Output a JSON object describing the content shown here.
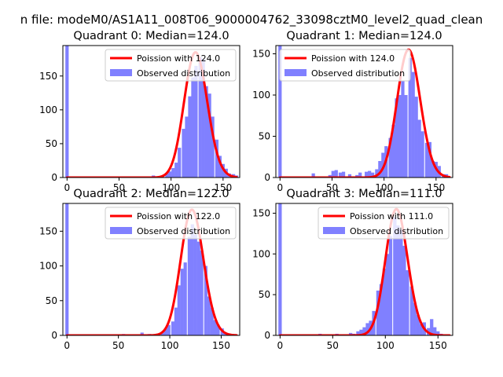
{
  "figure": {
    "suptitle": "n file: modeM0/AS1A11_008T06_9000004762_33098cztM0_level2_quad_clean"
  },
  "colors": {
    "poisson_line": "#ff0000",
    "histogram_fill": "#8080ff",
    "axes": "#000000",
    "background": "#ffffff"
  },
  "chart_data": [
    {
      "type": "bar",
      "title": "Quadrant 0: Median=124.0",
      "legend": {
        "placement": "top-right",
        "entries": [
          "Poission with 124.0",
          "Observed distribution"
        ]
      },
      "xlim": [
        -4,
        166
      ],
      "ylim": [
        0,
        195
      ],
      "xticks": [
        0,
        50,
        100,
        150
      ],
      "yticks": [
        0,
        50,
        100,
        150
      ],
      "grid": false,
      "bin_width": 3.2,
      "poisson_mean": 124,
      "poisson_peak": 185,
      "histogram": {
        "x": [
          0,
          32,
          64,
          80,
          83,
          86,
          89,
          92,
          96,
          99,
          102,
          105,
          108,
          112,
          115,
          118,
          121,
          124,
          128,
          131,
          134,
          137,
          140,
          144,
          147,
          150,
          153,
          156,
          160,
          163
        ],
        "values": [
          195,
          1,
          1,
          1,
          3,
          1,
          2,
          3,
          6,
          9,
          14,
          22,
          44,
          72,
          90,
          120,
          148,
          165,
          178,
          175,
          135,
          124,
          90,
          56,
          32,
          20,
          13,
          6,
          5,
          3
        ]
      }
    },
    {
      "type": "bar",
      "title": "Quadrant 1: Median=124.0",
      "legend": {
        "placement": "top-left",
        "entries": [
          "Poission with 124.0",
          "Observed distribution"
        ]
      },
      "xlim": [
        -4,
        166
      ],
      "ylim": [
        0,
        160
      ],
      "xticks": [
        0,
        50,
        100,
        150
      ],
      "yticks": [
        0,
        50,
        100,
        150
      ],
      "grid": false,
      "bin_width": 3.2,
      "poisson_mean": 124,
      "poisson_peak": 155,
      "histogram": {
        "x": [
          0,
          13,
          32,
          48,
          51,
          54,
          58,
          61,
          67,
          74,
          77,
          83,
          86,
          89,
          93,
          96,
          99,
          102,
          106,
          109,
          112,
          115,
          118,
          121,
          125,
          128,
          131,
          134,
          137,
          141,
          144,
          147,
          150,
          153,
          157,
          160
        ],
        "values": [
          160,
          1,
          5,
          3,
          8,
          9,
          6,
          7,
          4,
          3,
          6,
          7,
          8,
          6,
          10,
          20,
          30,
          38,
          48,
          64,
          96,
          100,
          117,
          100,
          145,
          128,
          98,
          70,
          56,
          42,
          43,
          20,
          19,
          14,
          4,
          4
        ]
      }
    },
    {
      "type": "bar",
      "title": "Quadrant 2: Median=122.0",
      "legend": {
        "placement": "top-right",
        "entries": [
          "Poission with 122.0",
          "Observed distribution"
        ]
      },
      "xlim": [
        -4,
        168
      ],
      "ylim": [
        0,
        190
      ],
      "xticks": [
        0,
        50,
        100,
        150
      ],
      "yticks": [
        0,
        50,
        100,
        150
      ],
      "grid": false,
      "bin_width": 3.2,
      "poisson_mean": 122,
      "poisson_peak": 181,
      "histogram": {
        "x": [
          0,
          32,
          55,
          61,
          64,
          73,
          80,
          86,
          93,
          96,
          99,
          103,
          106,
          109,
          112,
          115,
          119,
          122,
          125,
          128,
          131,
          135,
          138,
          141,
          144,
          147,
          151,
          154,
          157,
          160
        ],
        "values": [
          190,
          1,
          2,
          1,
          1,
          4,
          2,
          1,
          4,
          10,
          15,
          20,
          40,
          72,
          96,
          105,
          142,
          160,
          145,
          135,
          122,
          100,
          56,
          40,
          22,
          15,
          10,
          4,
          3,
          2
        ]
      }
    },
    {
      "type": "bar",
      "title": "Quadrant 3: Median=111.0",
      "legend": {
        "placement": "top-right",
        "entries": [
          "Poission with 111.0",
          "Observed distribution"
        ]
      },
      "xlim": [
        -4,
        164
      ],
      "ylim": [
        0,
        162
      ],
      "xticks": [
        0,
        50,
        100,
        150
      ],
      "yticks": [
        0,
        50,
        100,
        150
      ],
      "grid": false,
      "bin_width": 3.2,
      "poisson_mean": 111,
      "poisson_peak": 155,
      "histogram": {
        "x": [
          0,
          38,
          54,
          58,
          64,
          67,
          70,
          74,
          77,
          80,
          83,
          86,
          89,
          93,
          96,
          99,
          102,
          105,
          109,
          112,
          115,
          118,
          121,
          125,
          128,
          131,
          134,
          137,
          141,
          144,
          147,
          150,
          153
        ],
        "values": [
          162,
          2,
          2,
          1,
          1,
          3,
          2,
          5,
          7,
          10,
          15,
          18,
          30,
          55,
          63,
          82,
          100,
          122,
          145,
          135,
          130,
          110,
          80,
          60,
          40,
          25,
          14,
          16,
          9,
          20,
          10,
          5,
          2
        ]
      }
    }
  ]
}
